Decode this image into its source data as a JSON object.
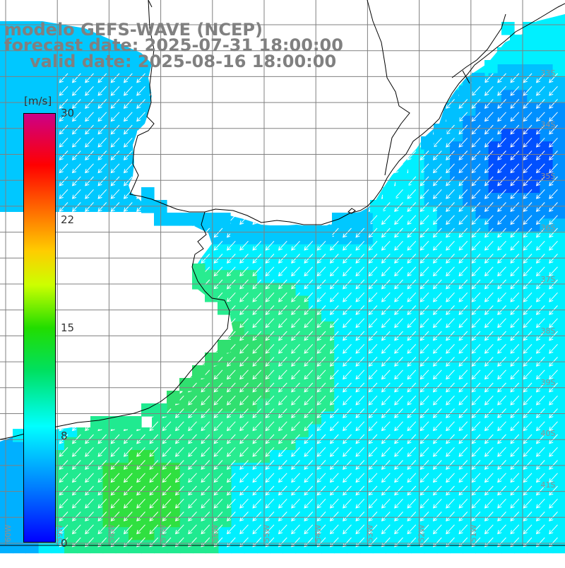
{
  "map": {
    "title": "modelo GEFS-WAVE (NCEP)",
    "forecast_date": "forecast date: 2025-07-31 18:00:00",
    "valid_date": "valid date: 2025-08-16 18:00:00",
    "variable_unit": "[m/s]",
    "lat_labels": [
      "33S",
      "34S",
      "35S",
      "36S",
      "37S",
      "38S",
      "39S",
      "40S",
      "41S"
    ],
    "lon_labels": [
      "60W",
      "59W",
      "58W",
      "57W",
      "56W",
      "55W",
      "54W",
      "53W",
      "52W",
      "51W"
    ],
    "colors": {
      "land": "#ffffff",
      "coast": "#000000",
      "grid": "#808080",
      "arrow": "#ffffff",
      "title": "#808080"
    }
  },
  "colorbar": {
    "min": 0,
    "max": 30,
    "ticks": [
      "30",
      "22",
      "15",
      "8",
      "0"
    ],
    "stops": [
      "#0000ff",
      "#00aaff",
      "#00ffff",
      "#00dd00",
      "#ffff00",
      "#ff8800",
      "#ff0000",
      "#cc0077"
    ]
  }
}
